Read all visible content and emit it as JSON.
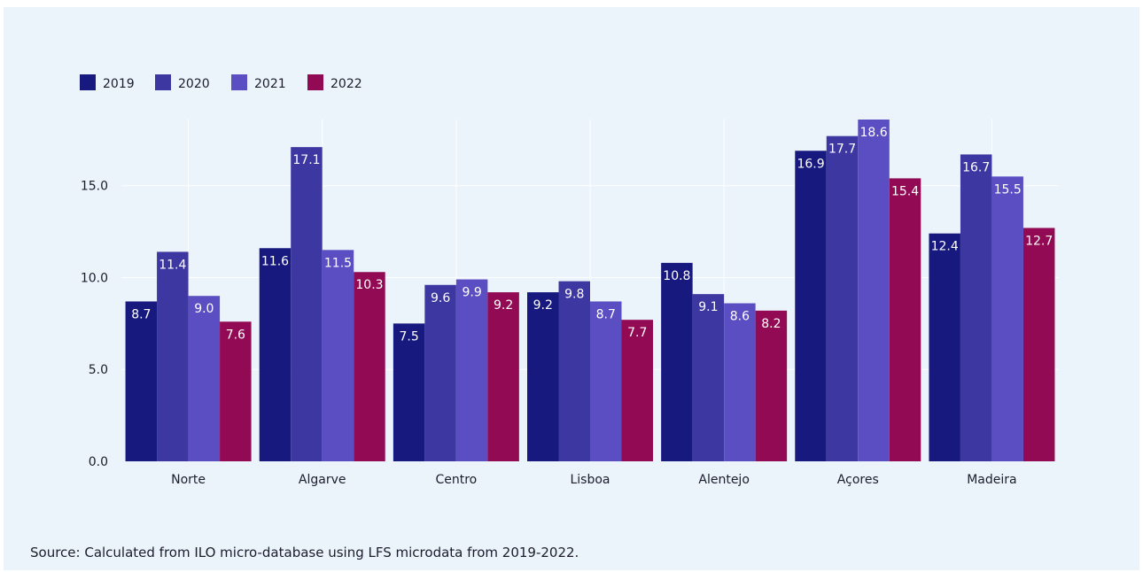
{
  "chart_data": {
    "type": "bar",
    "categories": [
      "Norte",
      "Algarve",
      "Centro",
      "Lisboa",
      "Alentejo",
      "Açores",
      "Madeira"
    ],
    "series": [
      {
        "name": "2019",
        "color": "#17197e",
        "values": [
          8.7,
          11.6,
          7.5,
          9.2,
          10.8,
          16.9,
          12.4
        ]
      },
      {
        "name": "2020",
        "color": "#3d37a2",
        "values": [
          11.4,
          17.1,
          9.6,
          9.8,
          9.1,
          17.7,
          16.7
        ]
      },
      {
        "name": "2021",
        "color": "#5a4ec2",
        "values": [
          9.0,
          11.5,
          9.9,
          8.7,
          8.6,
          18.6,
          15.5
        ]
      },
      {
        "name": "2022",
        "color": "#920a53",
        "values": [
          7.6,
          10.3,
          9.2,
          7.7,
          8.2,
          15.4,
          12.7
        ]
      }
    ],
    "y_ticks": [
      "0.0",
      "5.0",
      "10.0",
      "15.0"
    ],
    "y_tick_values": [
      0,
      5,
      10,
      15
    ],
    "ylim": [
      0,
      18.6
    ],
    "grid": true,
    "legend_position": "top-left"
  },
  "source": "Source: Calculated from ILO micro-database using LFS microdata from 2019-2022."
}
